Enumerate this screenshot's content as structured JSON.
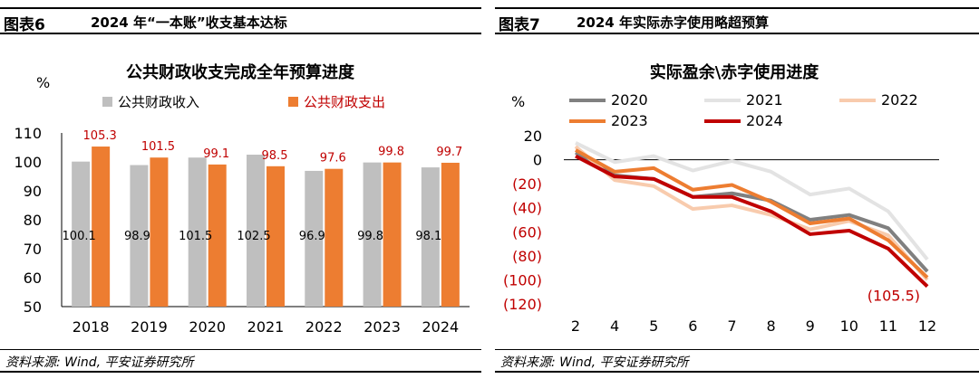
{
  "left": {
    "fig_no": "图表6",
    "fig_title": "2024 年“一本账”收支基本达标",
    "source": "资料来源: Wind, 平安证券研究所",
    "chart_data": {
      "type": "bar",
      "title": "公共财政收支完成全年预算进度",
      "unit": "%",
      "categories": [
        "2018",
        "2019",
        "2020",
        "2021",
        "2022",
        "2023",
        "2024"
      ],
      "series": [
        {
          "name": "公共财政收入",
          "color": "#bfbfbf",
          "values": [
            100.1,
            98.9,
            101.5,
            102.5,
            96.9,
            99.8,
            98.1
          ],
          "labels": [
            "100.1",
            "98.9",
            "101.5",
            "102.5",
            "96.9",
            "99.8",
            "98.1"
          ]
        },
        {
          "name": "公共财政支出",
          "color": "#ed7d31",
          "values": [
            105.3,
            101.5,
            99.1,
            98.5,
            97.6,
            99.8,
            99.7
          ],
          "labels": [
            "105.3",
            "101.5",
            "99.1",
            "98.5",
            "97.6",
            "99.8",
            "99.7"
          ]
        }
      ],
      "ylim": [
        50,
        110
      ],
      "yticks": [
        "50",
        "60",
        "70",
        "80",
        "90",
        "100",
        "110"
      ],
      "label_color_expense": "#c00000"
    }
  },
  "right": {
    "fig_no": "图表7",
    "fig_title": "2024 年实际赤字使用略超预算",
    "source": "资料来源: Wind, 平安证券研究所",
    "chart_data": {
      "type": "line",
      "title": "实际盈余\\赤字使用进度",
      "unit": "%",
      "x": [
        2,
        4,
        5,
        6,
        7,
        8,
        9,
        10,
        11,
        12
      ],
      "xticks": [
        "2",
        "4",
        "5",
        "6",
        "7",
        "8",
        "9",
        "10",
        "11",
        "12"
      ],
      "series": [
        {
          "name": "2020",
          "color": "#808080",
          "values": [
            6,
            -13,
            -16,
            -31,
            -28,
            -34,
            -50,
            -46,
            -57,
            -93
          ]
        },
        {
          "name": "2021",
          "color": "#e3e3e3",
          "values": [
            14,
            -2,
            3,
            -9,
            -1,
            -10,
            -29,
            -24,
            -43,
            -83
          ]
        },
        {
          "name": "2022",
          "color": "#f8cbad",
          "values": [
            11,
            -17,
            -22,
            -41,
            -38,
            -46,
            -58,
            -51,
            -63,
            -100
          ]
        },
        {
          "name": "2023",
          "color": "#ed7d31",
          "values": [
            8,
            -10,
            -7,
            -25,
            -21,
            -35,
            -53,
            -49,
            -67,
            -98
          ]
        },
        {
          "name": "2024",
          "color": "#c00000",
          "values": [
            3,
            -14,
            -16,
            -31,
            -31,
            -43,
            -62,
            -59,
            -74,
            -105.5
          ]
        }
      ],
      "ylim": [
        -120,
        20
      ],
      "yticks": [
        "20",
        "0",
        "(20)",
        "(40)",
        "(60)",
        "(80)",
        "(100)",
        "(120)"
      ],
      "annotation": "(105.5)",
      "negative_tick_color": "#c00000"
    }
  }
}
